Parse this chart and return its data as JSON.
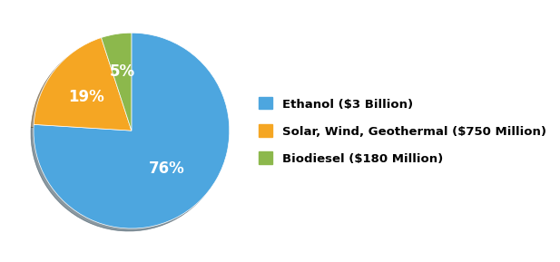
{
  "slices": [
    76,
    19,
    5
  ],
  "labels": [
    "Ethanol ($3 Billion)",
    "Solar, Wind, Geothermal ($750 Million)",
    "Biodiesel ($180 Million)"
  ],
  "colors": [
    "#4da6df",
    "#f5a623",
    "#8cb84c"
  ],
  "pct_labels": [
    "76%",
    "19%",
    "5%"
  ],
  "pct_radii": [
    0.52,
    0.58,
    0.62
  ],
  "startangle": 90,
  "counterclock": false,
  "background_color": "#ffffff",
  "legend_fontsize": 9.5,
  "pct_fontsize": 12,
  "pct_color": "white",
  "shadow_color": "#cccccc"
}
